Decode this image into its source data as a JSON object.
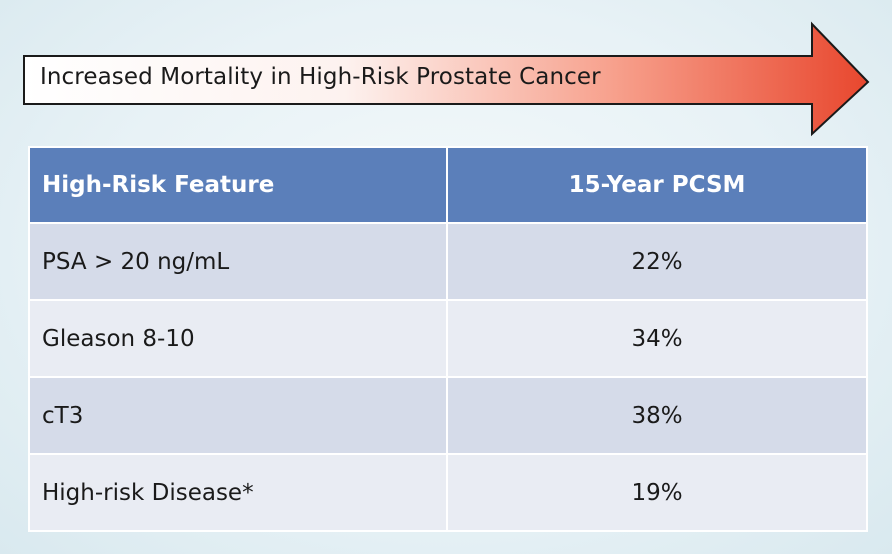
{
  "banner": {
    "text": "Increased Mortality in High-Risk Prostate Cancer",
    "gradient_start": "#ffffff",
    "gradient_end": "#e8472e"
  },
  "table": {
    "header_color": "#5b7fba",
    "headers": {
      "feature": "High-Risk Feature",
      "pcsm": "15-Year PCSM"
    },
    "rows": [
      {
        "feature": "PSA > 20 ng/mL",
        "pcsm": "22%"
      },
      {
        "feature": "Gleason 8-10",
        "pcsm": "34%"
      },
      {
        "feature": "cT3",
        "pcsm": "38%"
      },
      {
        "feature": "High-risk Disease*",
        "pcsm": "19%"
      }
    ]
  }
}
